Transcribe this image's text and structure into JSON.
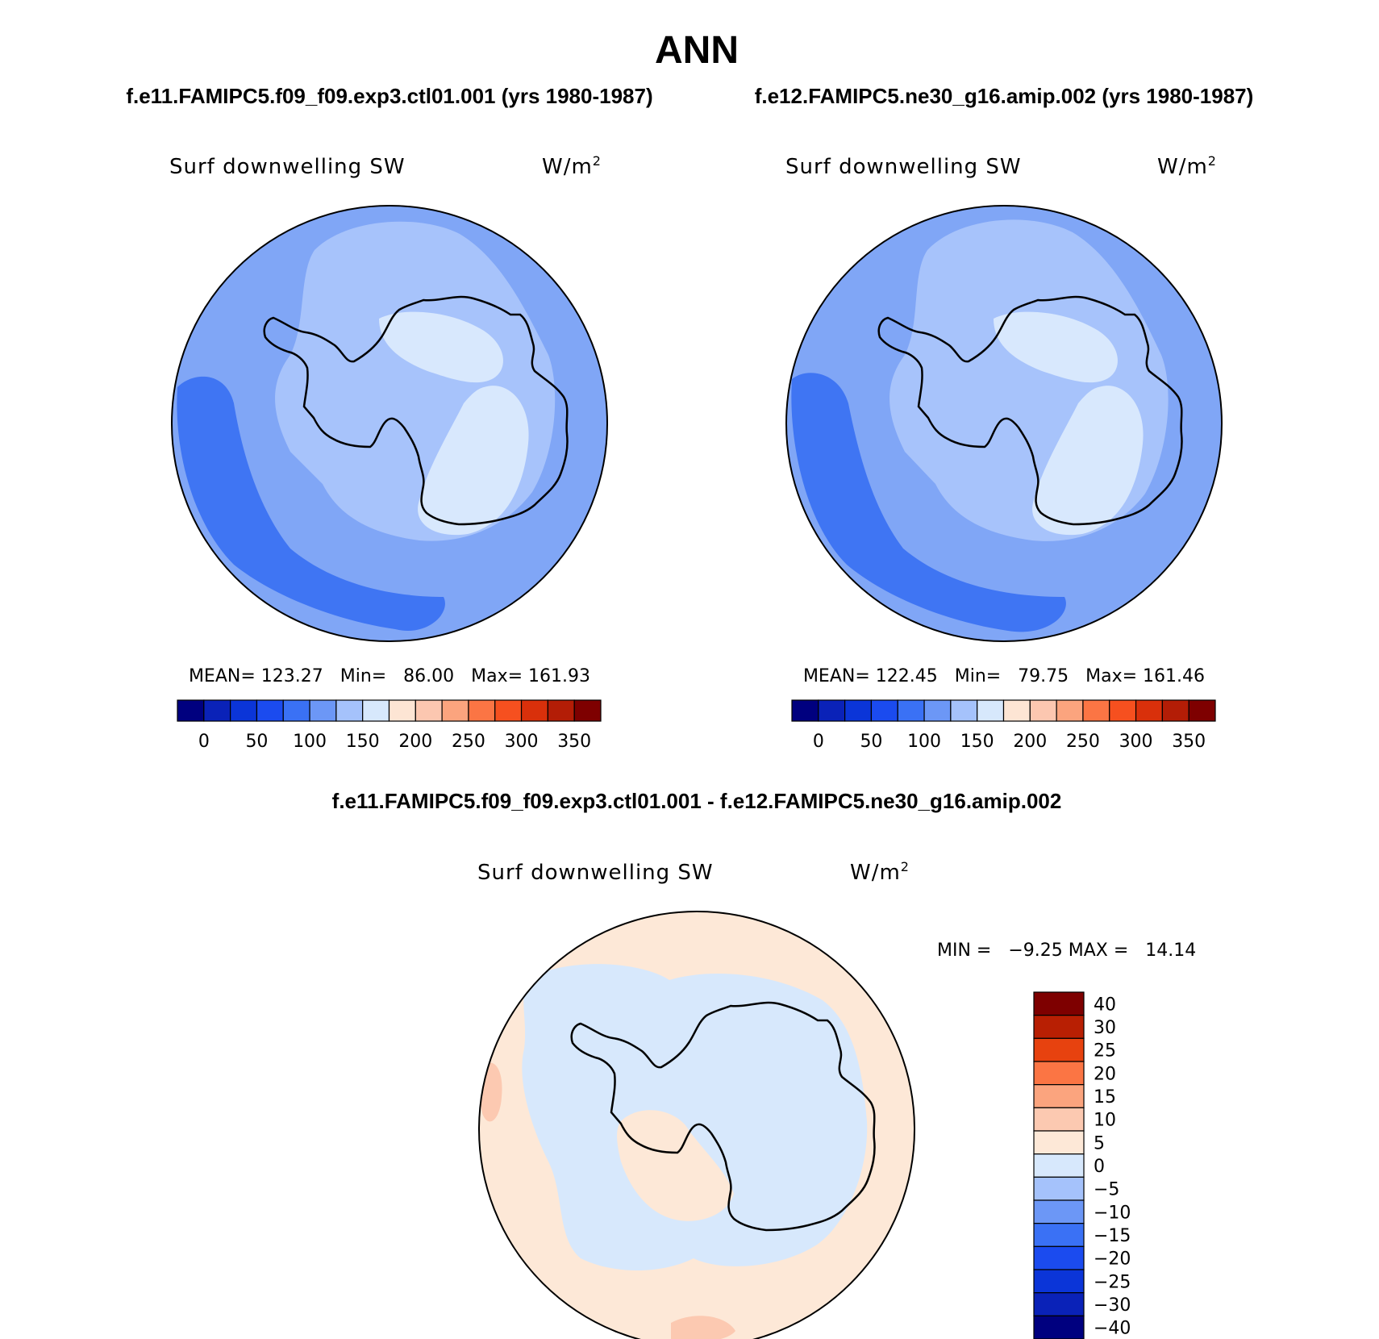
{
  "title": "ANN",
  "colors": {
    "absolute_scale": [
      "#00007f",
      "#0a22b8",
      "#0b35d8",
      "#1b4bef",
      "#3a71f5",
      "#6c97f6",
      "#a5c2fb",
      "#d7e8fc",
      "#fde5d4",
      "#fcc7b0",
      "#fba47e",
      "#fb7544",
      "#f6501f",
      "#d9300b",
      "#b31d06",
      "#7e0000"
    ],
    "difference_scale": [
      "#00007f",
      "#0a22b8",
      "#0b35d8",
      "#1b4bef",
      "#3a71f5",
      "#6c97f6",
      "#a5c2fb",
      "#d7e8fc",
      "#fde8d7",
      "#fcc9b1",
      "#fba47e",
      "#fb7544",
      "#e7420f",
      "#b81f03",
      "#7e0000"
    ],
    "coastline": "#000000"
  },
  "panels": [
    {
      "case": "f.e11.FAMIPC5.f09_f09.exp3.ctl01.001 (yrs 1980-1987)",
      "variable": "Surf downwelling SW",
      "units": "W/m",
      "units_sup": "2",
      "stats_text": "MEAN= 123.27   Min=   86.00   Max= 161.93"
    },
    {
      "case": "f.e12.FAMIPC5.ne30_g16.amip.002 (yrs 1980-1987)",
      "variable": "Surf downwelling SW",
      "units": "W/m",
      "units_sup": "2",
      "stats_text": "MEAN= 122.45   Min=   79.75   Max= 161.46"
    }
  ],
  "difference_panel": {
    "title": "f.e11.FAMIPC5.f09_f09.exp3.ctl01.001 - f.e12.FAMIPC5.ne30_g16.amip.002",
    "variable": "Surf downwelling SW",
    "units": "W/m",
    "units_sup": "2",
    "stats_text": "MIN =   −9.25 MAX =   14.14"
  },
  "chart_data": [
    {
      "type": "heatmap",
      "projection": "south polar stereographic",
      "title": "Surf downwelling SW",
      "units": "W/m2",
      "mean": 123.27,
      "min": 86.0,
      "max": 161.93,
      "colorbar_ticks": [
        "0",
        "50",
        "100",
        "150",
        "200",
        "250",
        "300",
        "350"
      ],
      "colorbar_levels": [
        0,
        25,
        50,
        75,
        100,
        125,
        150,
        175,
        200,
        225,
        250,
        275,
        300,
        325,
        350
      ]
    },
    {
      "type": "heatmap",
      "projection": "south polar stereographic",
      "title": "Surf downwelling SW",
      "units": "W/m2",
      "mean": 122.45,
      "min": 79.75,
      "max": 161.46,
      "colorbar_ticks": [
        "0",
        "50",
        "100",
        "150",
        "200",
        "250",
        "300",
        "350"
      ],
      "colorbar_levels": [
        0,
        25,
        50,
        75,
        100,
        125,
        150,
        175,
        200,
        225,
        250,
        275,
        300,
        325,
        350
      ]
    },
    {
      "type": "heatmap",
      "projection": "south polar stereographic",
      "title": "Surf downwelling SW",
      "units": "W/m2",
      "min": -9.25,
      "max": 14.14,
      "colorbar_ticks": [
        "40",
        "30",
        "25",
        "20",
        "15",
        "10",
        "5",
        "0",
        "−5",
        "−10",
        "−15",
        "−20",
        "−25",
        "−30",
        "−40"
      ]
    }
  ]
}
